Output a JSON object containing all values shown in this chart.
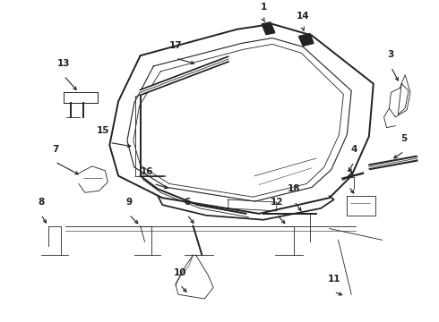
{
  "bg_color": "#ffffff",
  "line_color": "#222222",
  "fig_width": 4.9,
  "fig_height": 3.6,
  "dpi": 100,
  "lw_outer": 1.4,
  "lw_inner": 0.8,
  "lw_thin": 0.6,
  "font_size": 7.5
}
